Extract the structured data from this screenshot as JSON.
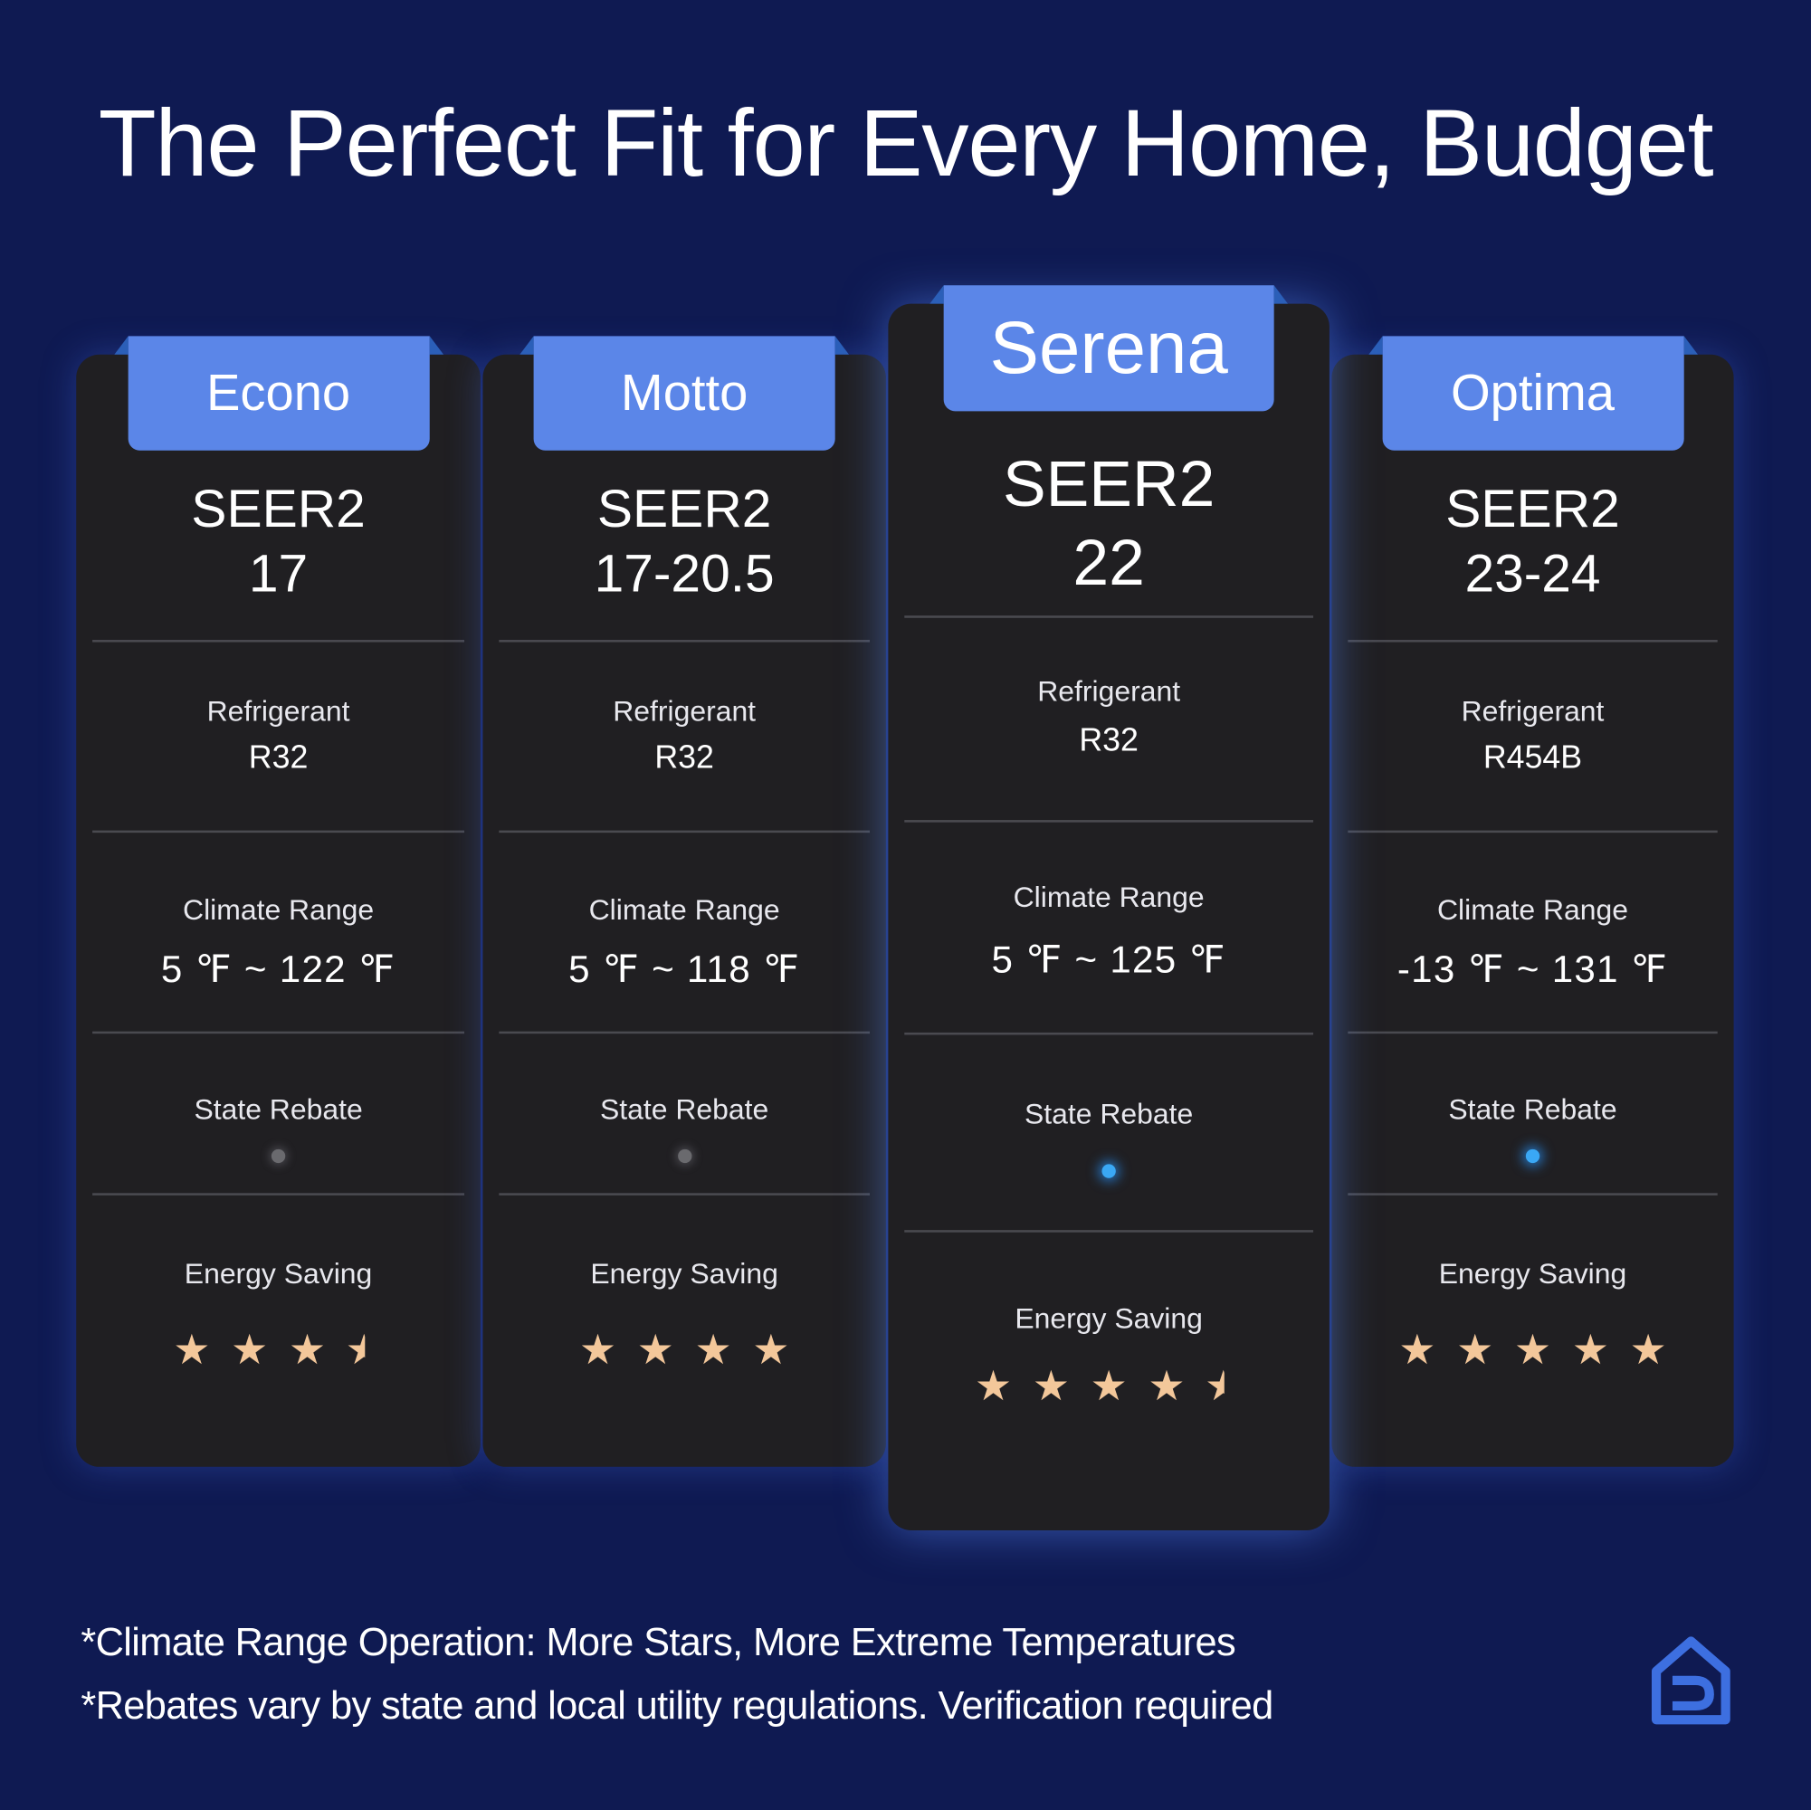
{
  "title": "The Perfect Fit for Every Home, Budget",
  "cards": [
    {
      "name": "Econo",
      "seer_label": "SEER2",
      "seer": "17",
      "refrigerant_label": "Refrigerant",
      "refrigerant": "R32",
      "climate_label": "Climate Range",
      "climate": "5 ℉ ~ 122 ℉",
      "rebate_label": "State Rebate",
      "rebate": false,
      "energy_label": "Energy Saving",
      "energy_stars": 3.5,
      "featured": false
    },
    {
      "name": "Motto",
      "seer_label": "SEER2",
      "seer": "17-20.5",
      "refrigerant_label": "Refrigerant",
      "refrigerant": "R32",
      "climate_label": "Climate Range",
      "climate": "5 ℉ ~ 118 ℉",
      "rebate_label": "State Rebate",
      "rebate": false,
      "energy_label": "Energy Saving",
      "energy_stars": 4,
      "featured": false
    },
    {
      "name": "Serena",
      "seer_label": "SEER2",
      "seer": "22",
      "refrigerant_label": "Refrigerant",
      "refrigerant": "R32",
      "climate_label": "Climate Range",
      "climate": "5 ℉ ~ 125 ℉",
      "rebate_label": "State Rebate",
      "rebate": true,
      "energy_label": "Energy Saving",
      "energy_stars": 4.5,
      "featured": true
    },
    {
      "name": "Optima",
      "seer_label": "SEER2",
      "seer": "23-24",
      "refrigerant_label": "Refrigerant",
      "refrigerant": "R454B",
      "climate_label": "Climate Range",
      "climate": "-13 ℉ ~ 131 ℉",
      "rebate_label": "State Rebate",
      "rebate": true,
      "energy_label": "Energy Saving",
      "energy_stars": 5,
      "featured": false
    }
  ],
  "footnotes": [
    "*Climate Range Operation: More Stars, More Extreme Temperatures",
    "*Rebates vary by state and local utility regulations. Verification required"
  ]
}
